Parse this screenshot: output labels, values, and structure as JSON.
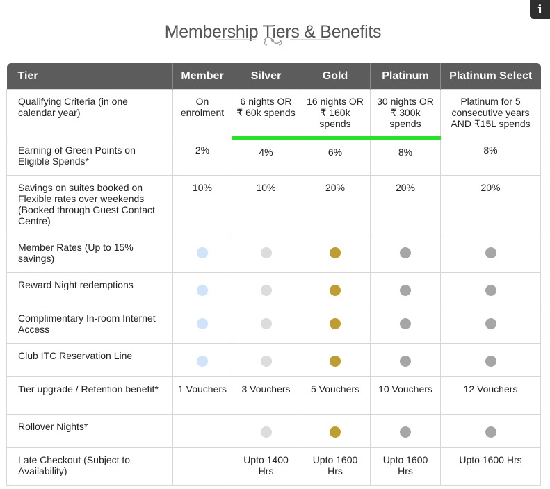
{
  "header": {
    "title": "Membership Tiers & Benefits",
    "info_label": "i"
  },
  "colors": {
    "header_bg": "#5c5c5c",
    "highlight": "#27e12a",
    "member_dot": "#cfe3fb",
    "silver_dot": "#dcdcdc",
    "gold_dot": "#bf9d30",
    "platinum_dot": "#a6a6a6"
  },
  "table": {
    "columns": [
      "Tier",
      "Member",
      "Silver",
      "Gold",
      "Platinum",
      "Platinum Select"
    ],
    "rows": [
      {
        "label": "Qualifying Criteria (in one calendar year)",
        "cells": [
          "On enrolment",
          "6 nights OR ₹ 60k spends",
          "16 nights OR ₹ 160k spends",
          "30 nights OR ₹ 300k spends",
          "Platinum for 5 consecutive years AND ₹15L spends"
        ]
      },
      {
        "label": "Earning of Green Points on Eligible Spends*",
        "cells": [
          "2%",
          "4%",
          "6%",
          "8%",
          "8%"
        ]
      },
      {
        "label": "Savings on suites booked on Flexible rates over weekends (Booked through Guest Contact Centre)",
        "cells": [
          "10%",
          "10%",
          "20%",
          "20%",
          "20%"
        ]
      },
      {
        "label": "Member Rates (Up to 15% savings)",
        "cells": [
          "",
          "",
          "",
          "",
          ""
        ]
      },
      {
        "label": "Reward Night redemptions",
        "cells": [
          "",
          "",
          "",
          "",
          ""
        ]
      },
      {
        "label": "Complimentary In-room Internet Access",
        "cells": [
          "",
          "",
          "",
          "",
          ""
        ]
      },
      {
        "label": "Club ITC Reservation Line",
        "cells": [
          "",
          "",
          "",
          "",
          ""
        ]
      },
      {
        "label": "Tier upgrade / Retention benefit*",
        "cells": [
          "1 Vouchers",
          "3 Vouchers",
          "5 Vouchers",
          "10 Vouchers",
          "12 Vouchers"
        ]
      },
      {
        "label": "Rollover Nights*",
        "cells": [
          "",
          "",
          "",
          "",
          ""
        ]
      },
      {
        "label": "Late Checkout (Subject to Availability)",
        "cells": [
          "",
          "Upto 1400 Hrs",
          "Upto 1600 Hrs",
          "Upto 1600 Hrs",
          "Upto 1600 Hrs"
        ]
      }
    ]
  }
}
